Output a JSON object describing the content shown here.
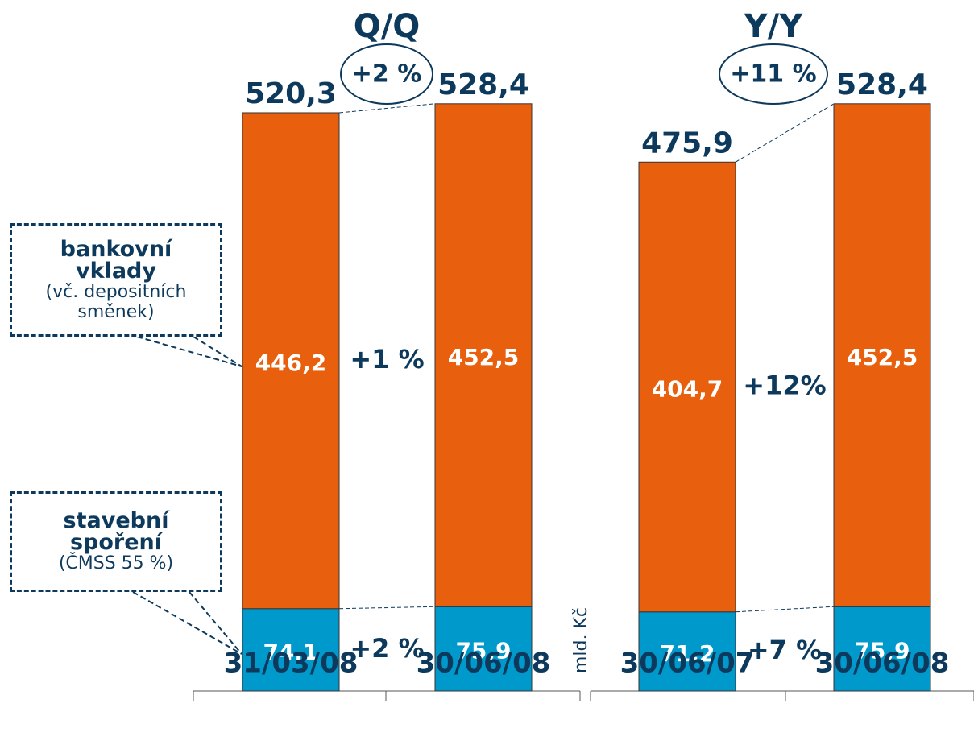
{
  "unit": "mld. Kč",
  "chart_data": [
    {
      "type": "bar",
      "stacked": true,
      "title": "Q/Q",
      "total_change": "+2 %",
      "categories": [
        "31/03/08",
        "30/06/08"
      ],
      "series": [
        {
          "name": "stavební spoření",
          "note": "(ČMSS 55 %)",
          "color": "#0099cc",
          "values": [
            74.1,
            75.9
          ],
          "value_labels": [
            "74,1",
            "75,9"
          ],
          "change": "+2 %"
        },
        {
          "name": "bankovní vklady",
          "note": "(vč. depositních směnek)",
          "color": "#e8600e",
          "values": [
            446.2,
            452.5
          ],
          "value_labels": [
            "446,2",
            "452,5"
          ],
          "change": "+1 %"
        }
      ],
      "totals": [
        520.3,
        528.4
      ],
      "total_labels": [
        "520,3",
        "528,4"
      ]
    },
    {
      "type": "bar",
      "stacked": true,
      "title": "Y/Y",
      "total_change": "+11 %",
      "categories": [
        "30/06/07",
        "30/06/08"
      ],
      "series": [
        {
          "name": "stavební spoření",
          "color": "#0099cc",
          "values": [
            71.2,
            75.9
          ],
          "value_labels": [
            "71,2",
            "75,9"
          ],
          "change": "+7 %"
        },
        {
          "name": "bankovní vklady",
          "color": "#e8600e",
          "values": [
            404.7,
            452.5
          ],
          "value_labels": [
            "404,7",
            "452,5"
          ],
          "change": "+12%"
        }
      ],
      "totals": [
        475.9,
        528.4
      ],
      "total_labels": [
        "475,9",
        "528,4"
      ]
    }
  ]
}
